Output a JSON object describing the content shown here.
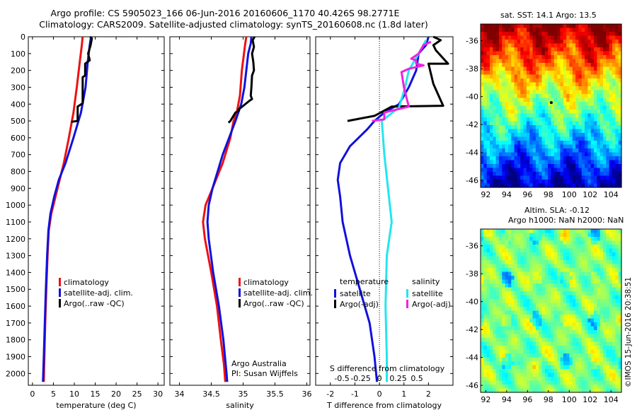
{
  "header": {
    "title_line1": "Argo profile: CS 5905023_166 06-Jun-2016 20160606_1170 40.426S 98.2771E",
    "title_line2": "Climatology: CARS2009. Satellite-adjusted climatology: synTS_20160608.nc (1.8d later)"
  },
  "colors": {
    "climatology": "#ee1111",
    "satellite": "#1111dd",
    "argo": "#000000",
    "satellite_s": "#22e6ee",
    "argo_s": "#ee22dd"
  },
  "chart_data": [
    {
      "type": "line",
      "panel": "temperature",
      "xlabel": "temperature (deg C)",
      "xlim": [
        -1,
        31.5
      ],
      "xticks": [
        0,
        5,
        10,
        15,
        20,
        25,
        30
      ],
      "ylim": [
        2070,
        0
      ],
      "yticks": [
        0,
        100,
        200,
        300,
        400,
        500,
        600,
        700,
        800,
        900,
        1000,
        1100,
        1200,
        1300,
        1400,
        1500,
        1600,
        1700,
        1800,
        1900,
        2000
      ],
      "legend": {
        "placement": "lower-center",
        "entries": [
          "climatology",
          "satellite-adj. clim.",
          "Argo(..raw -QC)"
        ]
      },
      "series": [
        {
          "name": "climatology",
          "color_key": "climatology",
          "points": [
            [
              12.0,
              0
            ],
            [
              11.8,
              50
            ],
            [
              11.3,
              150
            ],
            [
              10.6,
              300
            ],
            [
              9.8,
              450
            ],
            [
              8.7,
              600
            ],
            [
              7.5,
              750
            ],
            [
              6.5,
              850
            ],
            [
              5.5,
              950
            ],
            [
              4.5,
              1050
            ],
            [
              3.9,
              1150
            ],
            [
              3.6,
              1300
            ],
            [
              3.3,
              1500
            ],
            [
              3.05,
              1700
            ],
            [
              2.85,
              1900
            ],
            [
              2.7,
              2050
            ]
          ]
        },
        {
          "name": "satellite-adj. clim.",
          "color_key": "satellite",
          "points": [
            [
              14.0,
              0
            ],
            [
              13.7,
              50
            ],
            [
              13.2,
              150
            ],
            [
              12.7,
              300
            ],
            [
              11.6,
              450
            ],
            [
              9.8,
              600
            ],
            [
              7.9,
              750
            ],
            [
              6.3,
              850
            ],
            [
              5.2,
              950
            ],
            [
              4.3,
              1050
            ],
            [
              3.8,
              1150
            ],
            [
              3.5,
              1300
            ],
            [
              3.2,
              1500
            ],
            [
              2.95,
              1700
            ],
            [
              2.7,
              1900
            ],
            [
              2.5,
              2050
            ]
          ]
        },
        {
          "name": "Argo(..raw -QC)",
          "color_key": "argo",
          "points": [
            [
              13.8,
              0
            ],
            [
              14.2,
              10
            ],
            [
              13.9,
              50
            ],
            [
              13.3,
              100
            ],
            [
              13.7,
              140
            ],
            [
              12.6,
              160
            ],
            [
              12.6,
              230
            ],
            [
              12.0,
              240
            ],
            [
              12.0,
              395
            ],
            [
              10.8,
              415
            ],
            [
              10.8,
              500
            ],
            [
              9.3,
              505
            ]
          ]
        }
      ]
    },
    {
      "type": "line",
      "panel": "salinity",
      "xlabel": "salinity",
      "xlim": [
        33.85,
        36.05
      ],
      "xticks": [
        34,
        34.5,
        35,
        35.5,
        36
      ],
      "ylim": [
        2070,
        0
      ],
      "legend": {
        "placement": "lower-center",
        "entries": [
          "climatology",
          "satellite-adj. clim.",
          "Argo(..raw -QC)"
        ]
      },
      "annotation": [
        "Argo Australia",
        "PI: Susan Wijffels"
      ],
      "series": [
        {
          "name": "climatology",
          "color_key": "climatology",
          "points": [
            [
              35.05,
              0
            ],
            [
              35.03,
              50
            ],
            [
              35.02,
              80
            ],
            [
              34.98,
              200
            ],
            [
              34.95,
              350
            ],
            [
              34.9,
              450
            ],
            [
              34.85,
              500
            ],
            [
              34.8,
              600
            ],
            [
              34.68,
              750
            ],
            [
              34.52,
              900
            ],
            [
              34.41,
              1000
            ],
            [
              34.37,
              1100
            ],
            [
              34.4,
              1200
            ],
            [
              34.5,
              1400
            ],
            [
              34.59,
              1600
            ],
            [
              34.65,
              1800
            ],
            [
              34.7,
              1950
            ],
            [
              34.72,
              2050
            ]
          ]
        },
        {
          "name": "satellite-adj. clim.",
          "color_key": "satellite",
          "points": [
            [
              35.13,
              0
            ],
            [
              35.12,
              40
            ],
            [
              35.08,
              100
            ],
            [
              35.05,
              200
            ],
            [
              35.02,
              300
            ],
            [
              34.97,
              400
            ],
            [
              34.88,
              500
            ],
            [
              34.78,
              600
            ],
            [
              34.68,
              700
            ],
            [
              34.6,
              800
            ],
            [
              34.52,
              900
            ],
            [
              34.46,
              1000
            ],
            [
              34.44,
              1100
            ],
            [
              34.46,
              1200
            ],
            [
              34.53,
              1400
            ],
            [
              34.62,
              1600
            ],
            [
              34.69,
              1800
            ],
            [
              34.74,
              2000
            ],
            [
              34.75,
              2050
            ]
          ]
        },
        {
          "name": "Argo(..raw -QC)",
          "color_key": "argo",
          "points": [
            [
              35.18,
              0
            ],
            [
              35.15,
              20
            ],
            [
              35.17,
              60
            ],
            [
              35.14,
              100
            ],
            [
              35.16,
              150
            ],
            [
              35.17,
              200
            ],
            [
              35.14,
              230
            ],
            [
              35.13,
              300
            ],
            [
              35.12,
              350
            ],
            [
              35.14,
              370
            ],
            [
              35.1,
              380
            ],
            [
              34.97,
              420
            ],
            [
              34.93,
              430
            ],
            [
              34.93,
              440
            ],
            [
              34.88,
              450
            ],
            [
              34.8,
              500
            ],
            [
              34.77,
              510
            ]
          ]
        }
      ]
    },
    {
      "type": "line",
      "panel": "difference",
      "xlabel": "T difference from climatology",
      "xlim": [
        -2.6,
        3.0
      ],
      "xticks": [
        -2,
        -1,
        0,
        1,
        2
      ],
      "s_axis_label": "S difference from climatology",
      "s_ticks": [
        "-0.5",
        "-0.25",
        "0",
        "0.25",
        "0.5"
      ],
      "ylim": [
        2070,
        0
      ],
      "zero_line": "dotted",
      "legend": {
        "placement": "lower-center",
        "temperature_heading": "temperature",
        "salinity_heading": "salinity",
        "temperature_entries": [
          "satellite",
          "Argo(-adj)"
        ],
        "salinity_entries": [
          "satellite",
          "Argo(-adj)"
        ]
      },
      "series": [
        {
          "name": "temperature satellite",
          "color_key": "satellite",
          "points": [
            [
              2.0,
              0
            ],
            [
              1.9,
              50
            ],
            [
              1.6,
              100
            ],
            [
              1.5,
              200
            ],
            [
              1.2,
              300
            ],
            [
              0.8,
              400
            ],
            [
              0.2,
              450
            ],
            [
              -0.2,
              500
            ],
            [
              -0.5,
              550
            ],
            [
              -1.2,
              650
            ],
            [
              -1.6,
              750
            ],
            [
              -1.7,
              850
            ],
            [
              -1.6,
              950
            ],
            [
              -1.5,
              1100
            ],
            [
              -1.2,
              1300
            ],
            [
              -0.8,
              1500
            ],
            [
              -0.4,
              1700
            ],
            [
              -0.2,
              1900
            ],
            [
              -0.1,
              2050
            ]
          ]
        },
        {
          "name": "temperature Argo(-adj)",
          "color_key": "argo",
          "points": [
            [
              2.2,
              0
            ],
            [
              2.5,
              20
            ],
            [
              2.2,
              50
            ],
            [
              2.3,
              80
            ],
            [
              2.8,
              160
            ],
            [
              2.0,
              160
            ],
            [
              2.2,
              280
            ],
            [
              2.6,
              410
            ],
            [
              0.5,
              415
            ],
            [
              -0.2,
              470
            ],
            [
              -1.3,
              500
            ]
          ]
        },
        {
          "name": "salinity satellite",
          "color_key": "satellite_s",
          "points": [
            [
              1.9,
              20
            ],
            [
              1.6,
              100
            ],
            [
              1.2,
              200
            ],
            [
              1.05,
              300
            ],
            [
              0.8,
              420
            ],
            [
              0.1,
              500
            ],
            [
              0.2,
              700
            ],
            [
              0.35,
              900
            ],
            [
              0.5,
              1100
            ],
            [
              0.3,
              1300
            ],
            [
              0.25,
              1600
            ],
            [
              0.3,
              1900
            ],
            [
              0.3,
              2050
            ]
          ]
        },
        {
          "name": "salinity Argo(-adj)",
          "color_key": "argo_s",
          "points": [
            [
              2.1,
              30
            ],
            [
              1.8,
              50
            ],
            [
              1.6,
              100
            ],
            [
              1.3,
              130
            ],
            [
              1.5,
              140
            ],
            [
              1.5,
              160
            ],
            [
              1.8,
              170
            ],
            [
              1.2,
              190
            ],
            [
              0.9,
              210
            ],
            [
              1.0,
              300
            ],
            [
              1.1,
              360
            ],
            [
              1.2,
              415
            ],
            [
              0.2,
              450
            ],
            [
              0.2,
              490
            ],
            [
              -0.3,
              500
            ]
          ]
        }
      ]
    },
    {
      "type": "heatmap",
      "panel": "sst_map",
      "title": "sat. SST: 14.1  Argo: 13.5",
      "xticks": [
        92,
        94,
        96,
        98,
        100,
        102,
        104
      ],
      "yticks": [
        -36,
        -38,
        -40,
        -42,
        -44,
        -46
      ],
      "xlim": [
        91.5,
        105
      ],
      "ylim": [
        -46.5,
        -34.8
      ],
      "marker": {
        "lon": 98.2771,
        "lat": -40.426
      },
      "colormap": "jet, warm north to cold south"
    },
    {
      "type": "heatmap",
      "panel": "sla_map",
      "title_line1": "Altim. SLA: -0.12",
      "title_line2": "Argo h1000: NaN h2000: NaN",
      "xticks": [
        92,
        94,
        96,
        98,
        100,
        102,
        104
      ],
      "yticks": [
        -36,
        -38,
        -40,
        -42,
        -44,
        -46
      ],
      "xlim": [
        91.5,
        105
      ],
      "ylim": [
        -46.5,
        -34.8
      ],
      "colormap": "jet, mostly green"
    }
  ],
  "credit": "©IMOS 15-Jun-2016 20:38:51"
}
